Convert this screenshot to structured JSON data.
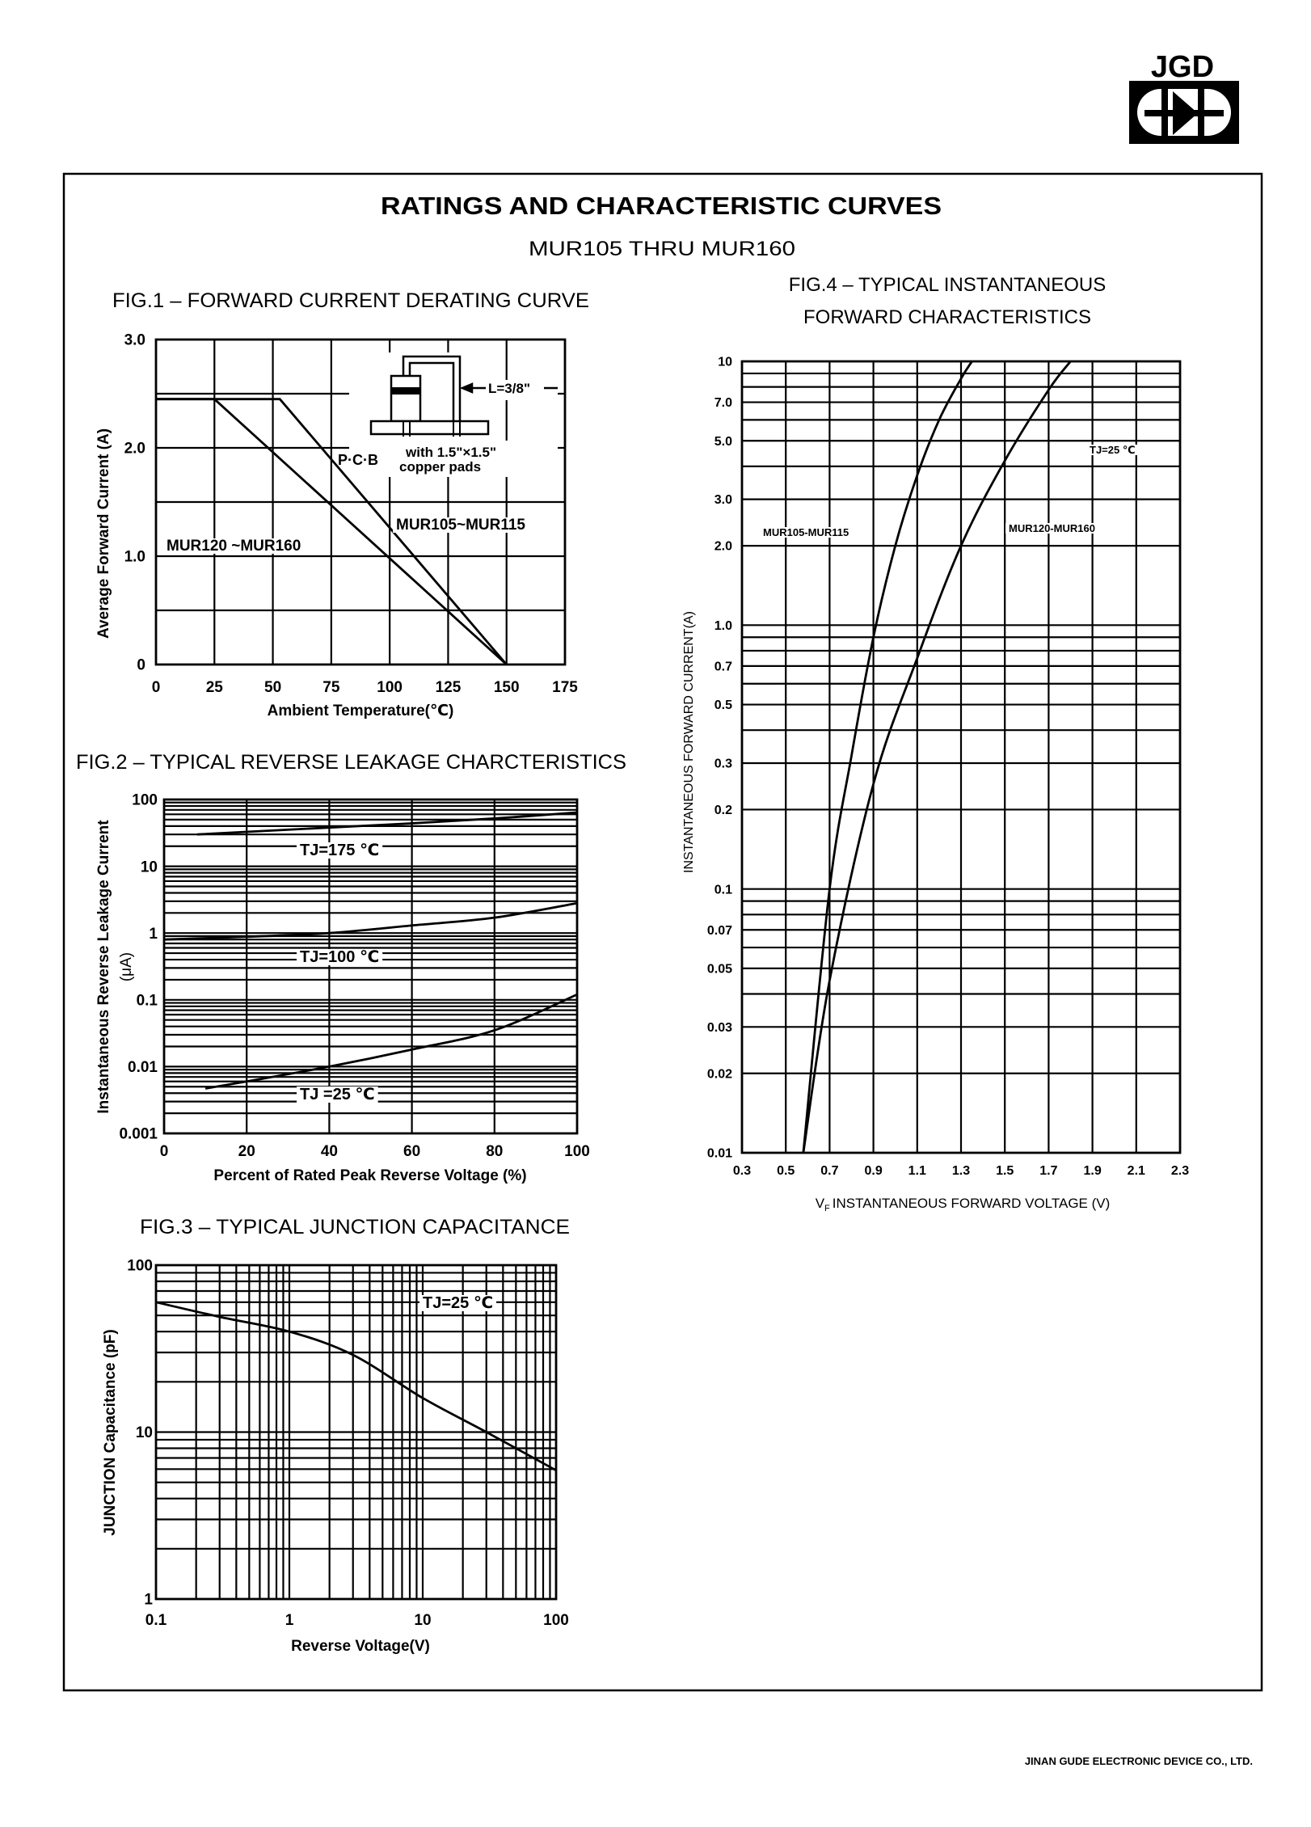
{
  "logo": {
    "text": "JGD"
  },
  "header": {
    "title": "RATINGS AND CHARACTERISTIC CURVES",
    "subtitle": "MUR105 THRU MUR160"
  },
  "footer": {
    "company": "JINAN GUDE ELECTRONIC DEVICE CO., LTD."
  },
  "chart_data": [
    {
      "type": "line",
      "title": "FIG.1 – FORWARD CURRENT DERATING CURVE",
      "xlabel": "Ambient Temperature(℃)",
      "ylabel": "Average Forward Current (A)",
      "xscale": "linear",
      "yscale": "linear",
      "xlim": [
        0,
        175
      ],
      "ylim": [
        0,
        3.0
      ],
      "grid": true,
      "xticks": [
        "0",
        "25",
        "50",
        "75",
        "100",
        "125",
        "150",
        "175"
      ],
      "yticks": [
        "0",
        "1.0",
        "2.0",
        "3.0"
      ],
      "series": [
        {
          "name": "MUR120 ~MUR160",
          "x": [
            0,
            25,
            150
          ],
          "y": [
            2.45,
            2.45,
            0
          ]
        },
        {
          "name": "MUR105~MUR115",
          "x": [
            0,
            53,
            150
          ],
          "y": [
            2.45,
            2.45,
            0
          ]
        }
      ],
      "annotations": [
        "L=3/8\"",
        "P·C·B",
        "with 1.5\"×1.5\"",
        "copper pads"
      ]
    },
    {
      "type": "line",
      "title": "FIG.2 – TYPICAL REVERSE LEAKAGE CHARCTERISTICS",
      "xlabel": "Percent of Rated Peak Reverse Voltage (%)",
      "ylabel": "Instantaneous Reverse Leakage Current",
      "ylabel_unit": "(μA)",
      "xscale": "linear",
      "yscale": "log",
      "xlim": [
        0,
        100
      ],
      "ylim": [
        0.001,
        100
      ],
      "grid": true,
      "xticks": [
        "0",
        "20",
        "40",
        "60",
        "80",
        "100"
      ],
      "yticks": [
        "100",
        "10",
        "1",
        "0.1",
        "0.01",
        "0.001"
      ],
      "series": [
        {
          "name": "TJ=175 ℃",
          "x": [
            8,
            40,
            60,
            80,
            100
          ],
          "y": [
            30,
            38,
            44,
            52,
            64
          ]
        },
        {
          "name": "TJ=100 ℃",
          "x": [
            0,
            20,
            40,
            60,
            80,
            100
          ],
          "y": [
            0.8,
            0.88,
            1.0,
            1.3,
            1.7,
            2.8
          ]
        },
        {
          "name": "TJ =25 ℃",
          "x": [
            10,
            20,
            40,
            60,
            80,
            100
          ],
          "y": [
            0.0047,
            0.006,
            0.01,
            0.018,
            0.035,
            0.12
          ]
        }
      ]
    },
    {
      "type": "line",
      "title": "FIG.3 – TYPICAL JUNCTION CAPACITANCE",
      "xlabel": "Reverse Voltage(V)",
      "ylabel": "JUNCTION Capacitance (pF)",
      "xscale": "log",
      "yscale": "log",
      "xlim": [
        0.1,
        100
      ],
      "ylim": [
        1,
        100
      ],
      "grid": true,
      "xticks": [
        "0.1",
        "1",
        "10",
        "100"
      ],
      "yticks": [
        "100",
        "10",
        "1"
      ],
      "series": [
        {
          "x": [
            0.1,
            0.3,
            1,
            3,
            10,
            30,
            100
          ],
          "y": [
            60,
            49,
            40,
            29,
            16,
            10,
            5.9
          ]
        }
      ],
      "annotations": [
        "TJ=25 ℃"
      ]
    },
    {
      "type": "line",
      "title": [
        "FIG.4 – TYPICAL INSTANTANEOUS",
        "FORWARD CHARACTERISTICS"
      ],
      "xlabel": {
        "symbol": "V",
        "subscript": "F",
        "text": "INSTANTANEOUS  FORWARD  VOLTAGE (V)"
      },
      "ylabel": "INSTANTANEOUS FORWARD CURRENT(A)",
      "xscale": "linear",
      "yscale": "log",
      "xlim": [
        0.3,
        2.3
      ],
      "ylim": [
        0.01,
        10
      ],
      "grid": true,
      "xticks": [
        "0.3",
        "0.5",
        "0.7",
        "0.9",
        "1.1",
        "1.3",
        "1.5",
        "1.7",
        "1.9",
        "2.1",
        "2.3"
      ],
      "yticks": [
        "10",
        "7.0",
        "5.0",
        "3.0",
        "2.0",
        "1.0",
        "0.7",
        "0.5",
        "0.3",
        "0.2",
        "0.1",
        "0.07",
        "0.05",
        "0.03",
        "0.02",
        "0.01"
      ],
      "series": [
        {
          "name": "MUR105-MUR115",
          "x": [
            0.58,
            0.7,
            0.8,
            0.9,
            1.0,
            1.1,
            1.2,
            1.3,
            1.35
          ],
          "y": [
            0.01,
            0.1,
            0.32,
            0.9,
            2.0,
            3.7,
            6.0,
            8.6,
            10
          ]
        },
        {
          "name": "MUR120-MUR160",
          "x": [
            0.58,
            0.7,
            0.9,
            1.1,
            1.3,
            1.5,
            1.7,
            1.8
          ],
          "y": [
            0.01,
            0.045,
            0.25,
            0.75,
            2.0,
            4.2,
            7.8,
            10
          ]
        }
      ],
      "annotations": [
        "TJ=25 ℃"
      ]
    }
  ]
}
